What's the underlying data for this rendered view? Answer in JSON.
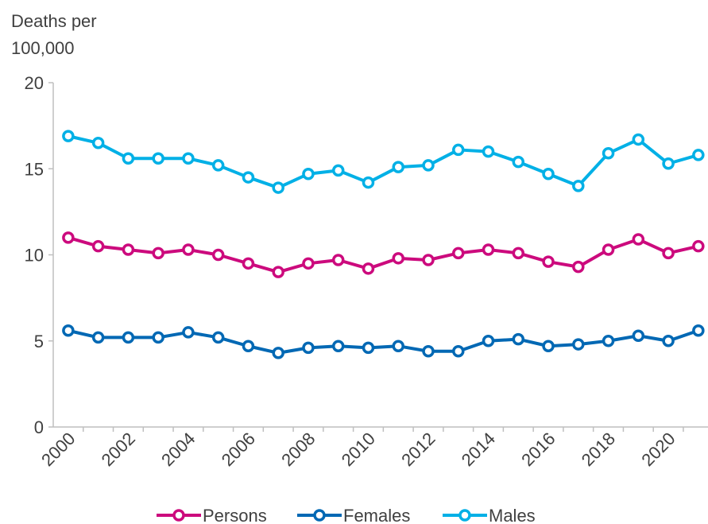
{
  "chart_data": {
    "type": "line",
    "ylabel": [
      "Deaths per",
      "100,000"
    ],
    "categories": [
      "2000",
      null,
      "2002",
      null,
      "2004",
      null,
      "2006",
      null,
      "2008",
      null,
      "2010",
      null,
      "2012",
      null,
      "2014",
      null,
      "2016",
      null,
      "2018",
      null,
      "2020",
      null
    ],
    "series": [
      {
        "name": "Persons",
        "color": "#cc0a7d",
        "values": [
          11.0,
          10.5,
          10.3,
          10.1,
          10.3,
          10.0,
          9.5,
          9.0,
          9.5,
          9.7,
          9.2,
          9.8,
          9.7,
          10.1,
          10.3,
          10.1,
          9.6,
          9.3,
          10.3,
          10.9,
          10.1,
          10.5
        ]
      },
      {
        "name": "Females",
        "color": "#0068b4",
        "values": [
          5.6,
          5.2,
          5.2,
          5.2,
          5.5,
          5.2,
          4.7,
          4.3,
          4.6,
          4.7,
          4.6,
          4.7,
          4.4,
          4.4,
          5.0,
          5.1,
          4.7,
          4.8,
          5.0,
          5.3,
          5.0,
          5.6
        ]
      },
      {
        "name": "Males",
        "color": "#00b0e6",
        "values": [
          16.9,
          16.5,
          15.6,
          15.6,
          15.6,
          15.2,
          14.5,
          13.9,
          14.7,
          14.9,
          14.2,
          15.1,
          15.2,
          16.1,
          16.0,
          15.4,
          14.7,
          14.0,
          15.9,
          16.7,
          15.3,
          15.8
        ]
      }
    ],
    "ylim": [
      0,
      20
    ],
    "yticks": [
      0,
      5,
      10,
      15,
      20
    ],
    "legend": "bottom"
  }
}
